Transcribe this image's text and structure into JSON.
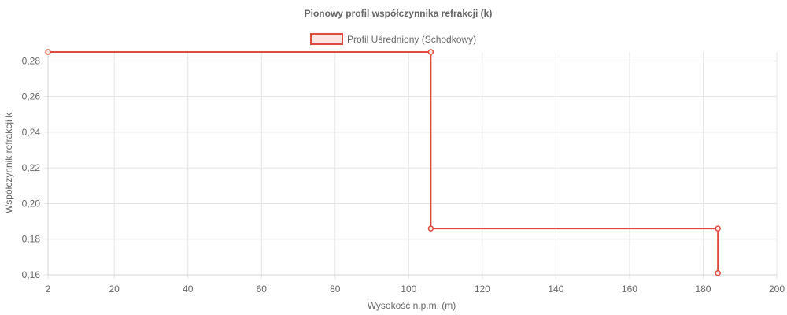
{
  "chart_data": {
    "type": "line",
    "title": "Pionowy profil współczynnika refrakcji (k)",
    "xlabel": "Wysokość n.p.m. (m)",
    "ylabel": "Współczynnik refrakcji k",
    "xlim": [
      2,
      200
    ],
    "ylim": [
      0.16,
      0.285
    ],
    "x_ticks": [
      "2",
      "20",
      "40",
      "60",
      "80",
      "100",
      "120",
      "140",
      "160",
      "180",
      "200"
    ],
    "x_tick_values": [
      2,
      20,
      40,
      60,
      80,
      100,
      120,
      140,
      160,
      180,
      200
    ],
    "y_ticks": [
      "0,28",
      "0,26",
      "0,24",
      "0,22",
      "0,20",
      "0,18",
      "0,16"
    ],
    "y_tick_values": [
      0.28,
      0.26,
      0.24,
      0.22,
      0.2,
      0.18,
      0.16
    ],
    "grid": true,
    "legend_position": "top",
    "series": [
      {
        "name": "Profil Uśredniony (Schodkowy)",
        "color": "#e04b3f",
        "fill_color": "#fbe6e4",
        "x": [
          2,
          106,
          106,
          184,
          184
        ],
        "y": [
          0.285,
          0.285,
          0.186,
          0.186,
          0.161
        ]
      }
    ]
  }
}
